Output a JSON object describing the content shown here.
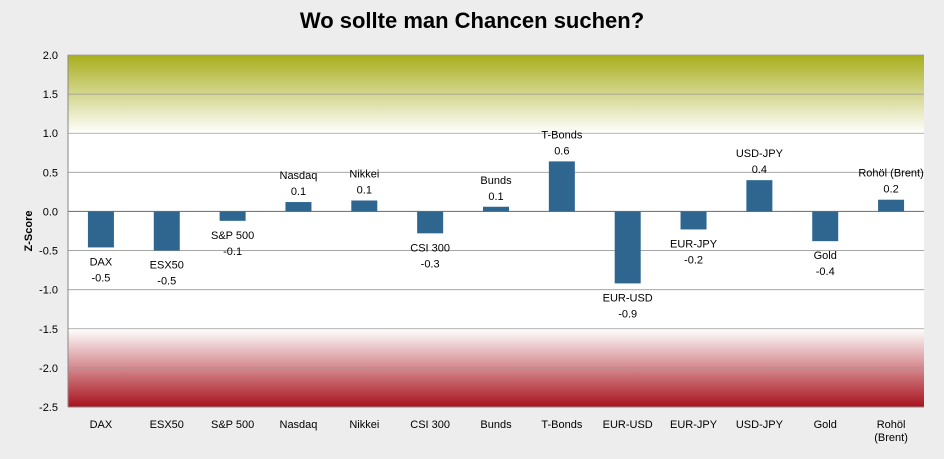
{
  "chart_data": {
    "type": "bar",
    "title": "Wo sollte man Chancen suchen?",
    "xlabel": "",
    "ylabel": "Z-Score",
    "ylim": [
      -2.5,
      2.0
    ],
    "yticks": [
      "2.0",
      "1.5",
      "1.0",
      "0.5",
      "0.0",
      "-0.5",
      "-1.0",
      "-1.5",
      "-2.0",
      "-2.5"
    ],
    "grid": true,
    "legend": "none",
    "background_bands": [
      {
        "range": [
          1.0,
          2.0
        ],
        "color": "#a8ae1c"
      },
      {
        "range": [
          -2.5,
          -1.5
        ],
        "color": "#a8121d"
      }
    ],
    "bar_color": "#2e6690",
    "categories": [
      "DAX",
      "ESX50",
      "S&P 500",
      "Nasdaq",
      "Nikkei",
      "CSI 300",
      "Bunds",
      "T-Bonds",
      "EUR-USD",
      "EUR-JPY",
      "USD-JPY",
      "Gold",
      "Rohöl (Brent)"
    ],
    "category_tick_lines": [
      [
        "DAX"
      ],
      [
        "ESX50"
      ],
      [
        "S&P 500"
      ],
      [
        "Nasdaq"
      ],
      [
        "Nikkei"
      ],
      [
        "CSI 300"
      ],
      [
        "Bunds"
      ],
      [
        "T-Bonds"
      ],
      [
        "EUR-USD"
      ],
      [
        "EUR-JPY"
      ],
      [
        "USD-JPY"
      ],
      [
        "Gold"
      ],
      [
        "Rohöl",
        "(Brent)"
      ]
    ],
    "values": [
      -0.46,
      -0.5,
      -0.12,
      0.12,
      0.14,
      -0.28,
      0.06,
      0.64,
      -0.92,
      -0.23,
      0.4,
      -0.38,
      0.15
    ],
    "data_labels": [
      {
        "name": "DAX",
        "value": "-0.5"
      },
      {
        "name": "ESX50",
        "value": "-0.5"
      },
      {
        "name": "S&P 500",
        "value": "-0.1"
      },
      {
        "name": "Nasdaq",
        "value": "0.1"
      },
      {
        "name": "Nikkei",
        "value": "0.1"
      },
      {
        "name": "CSI 300",
        "value": "-0.3"
      },
      {
        "name": "Bunds",
        "value": "0.1"
      },
      {
        "name": "T-Bonds",
        "value": "0.6"
      },
      {
        "name": "EUR-USD",
        "value": "-0.9"
      },
      {
        "name": "EUR-JPY",
        "value": "-0.2"
      },
      {
        "name": "USD-JPY",
        "value": "0.4"
      },
      {
        "name": "Gold",
        "value": "-0.4"
      },
      {
        "name": "Rohöl (Brent)",
        "value": "0.2"
      }
    ]
  }
}
